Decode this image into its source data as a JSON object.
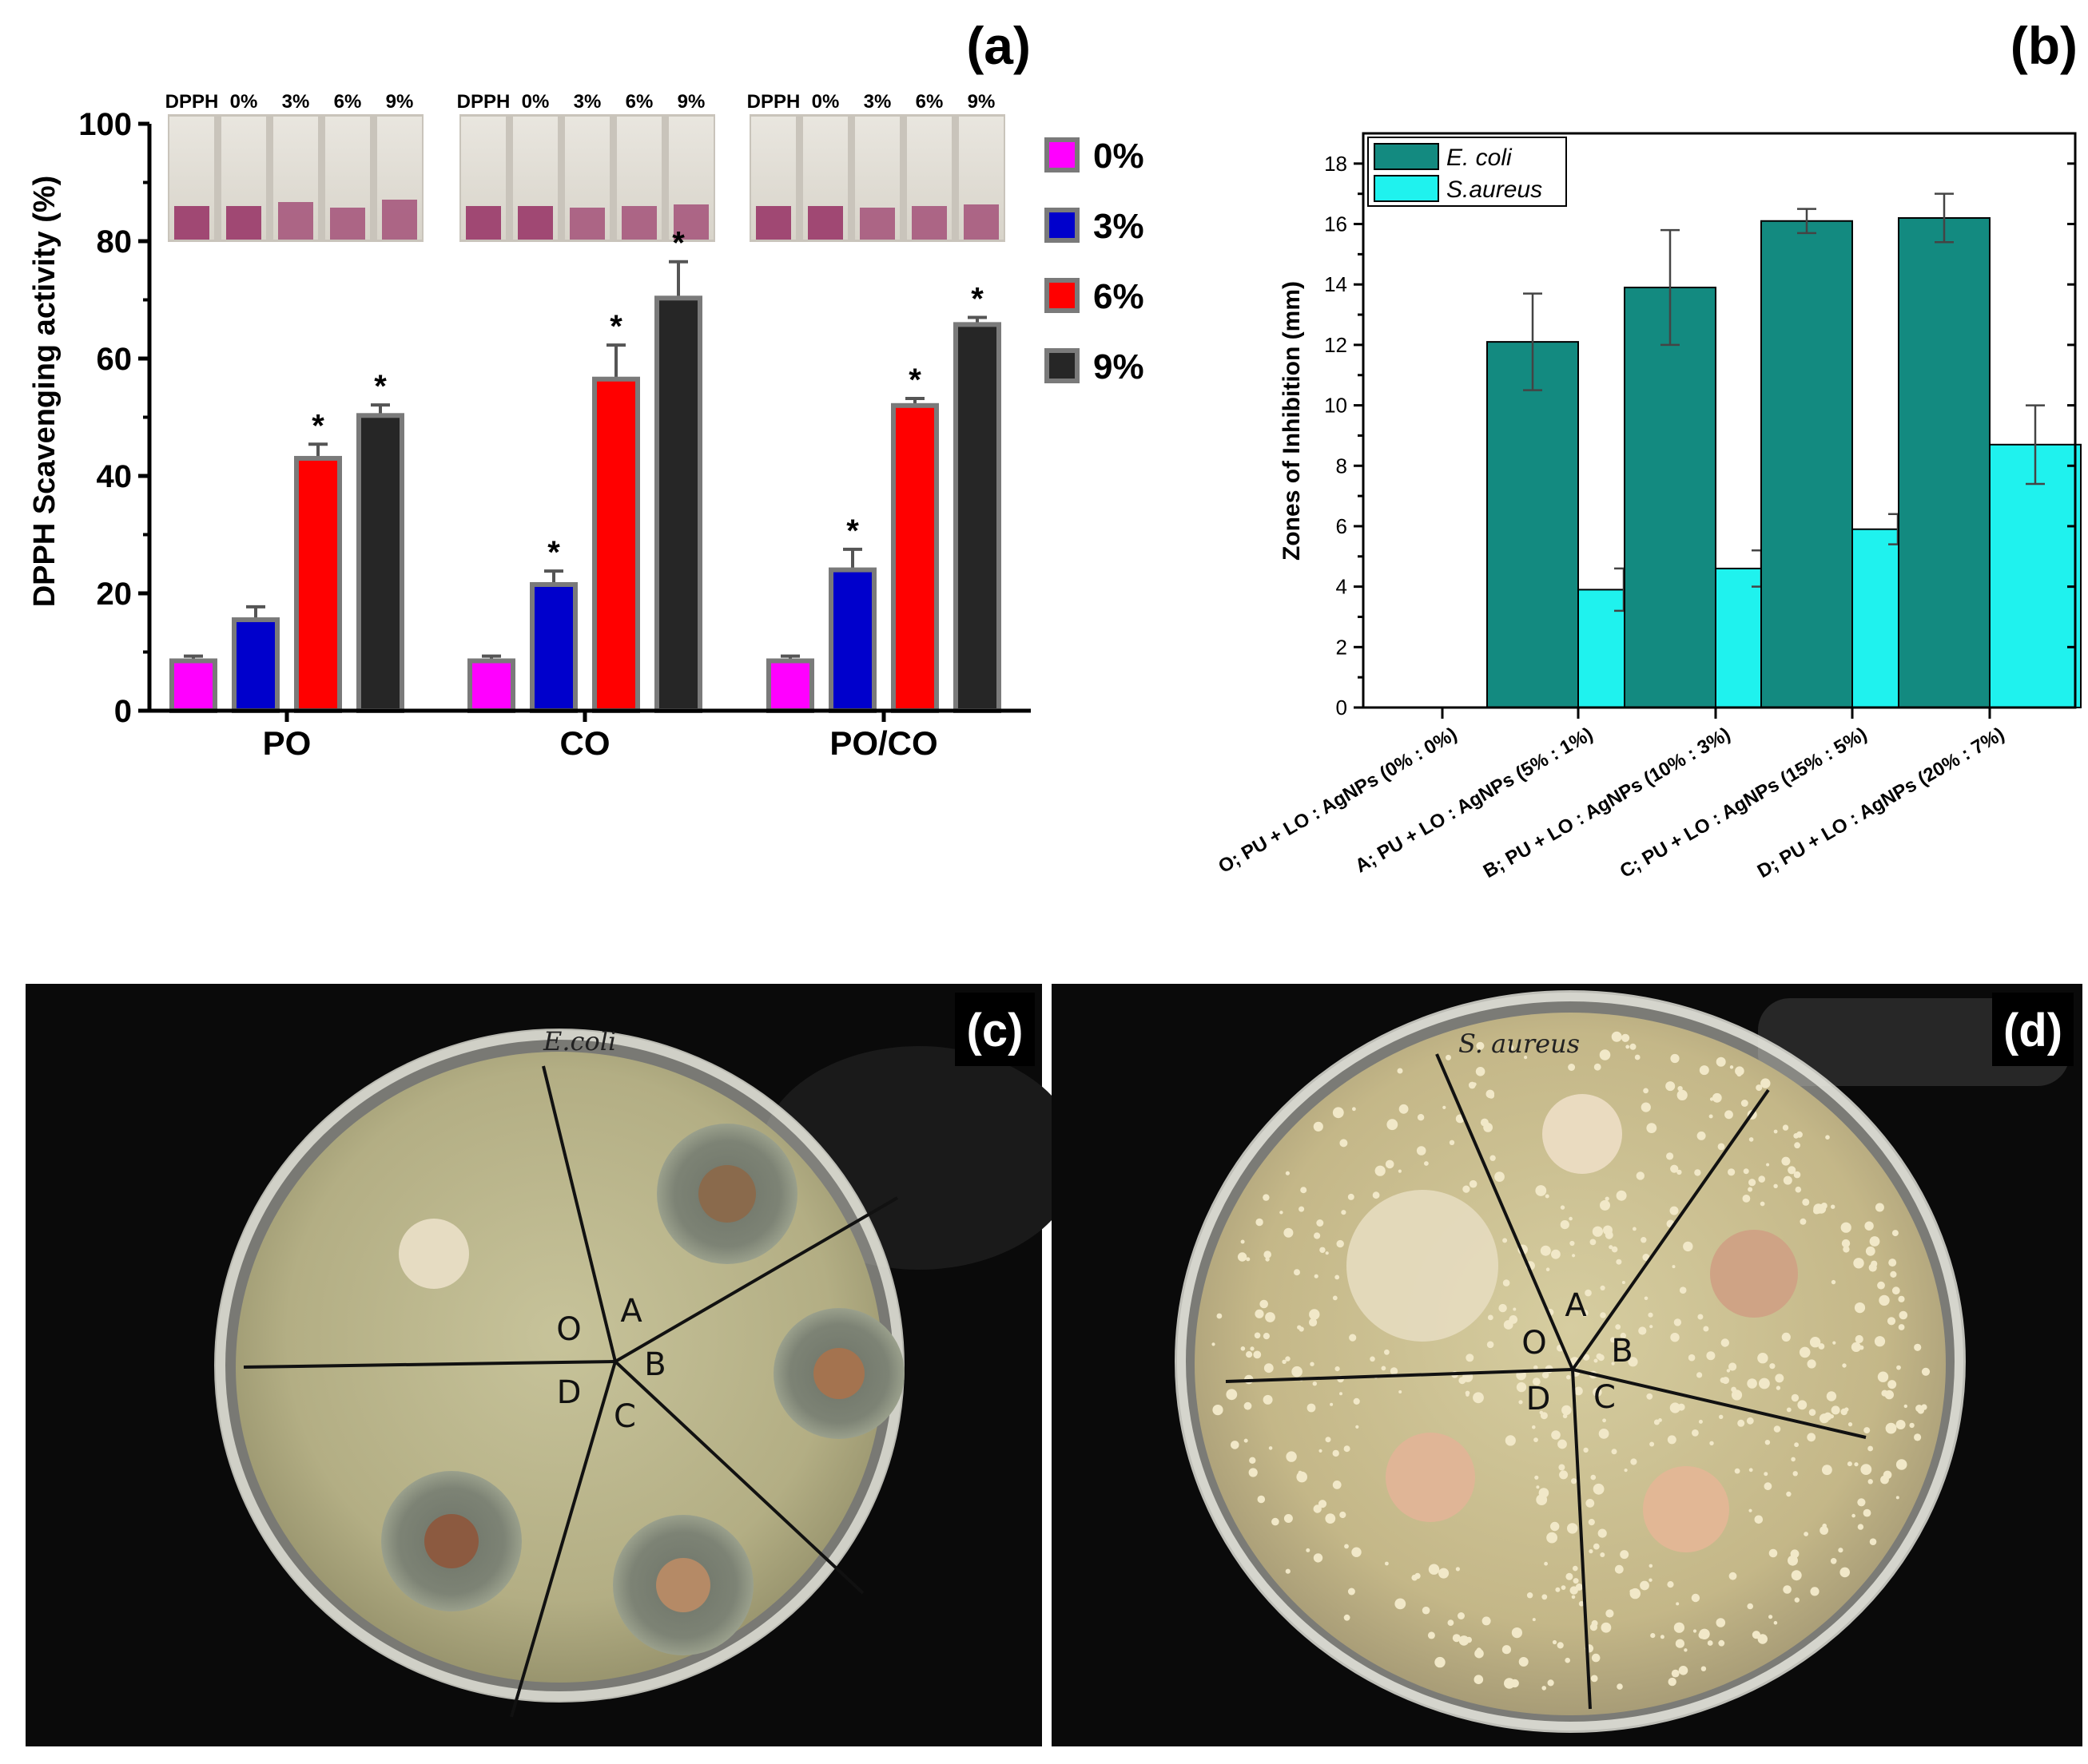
{
  "panel_labels": {
    "a": "(a)",
    "b": "(b)",
    "c": "(c)",
    "d": "(d)"
  },
  "colors": {
    "s0": "#ff00ff",
    "s3": "#0000cc",
    "s6": "#ff0000",
    "s9": "#262626",
    "bar_border": "#7a7a7a",
    "ecoli": "#138a80",
    "saureus": "#1ff2ee",
    "plate_bg": "#0b0b0b",
    "agar_c": "#b9b48a",
    "agar_d": "#c8bc8c",
    "vial_liquid": "#a04873"
  },
  "chart_data": [
    {
      "type": "bar",
      "panel": "a",
      "ylabel": "DPPH Scavenging activity (%)",
      "ylim": [
        0,
        100
      ],
      "yticks": [
        0,
        20,
        40,
        60,
        80,
        100
      ],
      "categories": [
        "PO",
        "CO",
        "PO/CO"
      ],
      "vial_labels": [
        "DPPH",
        "0%",
        "3%",
        "6%",
        "9%"
      ],
      "legend_position": "right",
      "series": [
        {
          "name": "0%",
          "color_key": "s0",
          "values": [
            8.5,
            8.5,
            8.5
          ],
          "errors": [
            0.8,
            0.8,
            0.8
          ],
          "significant": [
            false,
            false,
            false
          ]
        },
        {
          "name": "3%",
          "color_key": "s3",
          "values": [
            15.5,
            21.5,
            24
          ],
          "errors": [
            2.2,
            2.3,
            3.5
          ],
          "significant": [
            false,
            true,
            true
          ]
        },
        {
          "name": "6%",
          "color_key": "s6",
          "values": [
            43,
            56.5,
            52
          ],
          "errors": [
            2.4,
            5.8,
            1.2
          ],
          "significant": [
            true,
            true,
            true
          ]
        },
        {
          "name": "9%",
          "color_key": "s9",
          "values": [
            50.3,
            70.3,
            65.8
          ],
          "errors": [
            1.8,
            6.2,
            1.2
          ],
          "significant": [
            true,
            true,
            true
          ]
        }
      ],
      "significance_marker": "*"
    },
    {
      "type": "bar",
      "panel": "b",
      "ylabel": "Zones of Inhibition (mm)",
      "ylim": [
        0,
        19
      ],
      "yticks": [
        0,
        2,
        4,
        6,
        8,
        10,
        12,
        14,
        16,
        18
      ],
      "categories": [
        "O; PU + LO : AgNPs (0% : 0%)",
        "A; PU + LO : AgNPs (5% : 1%)",
        "B; PU + LO : AgNPs (10% : 3%)",
        "C; PU + LO : AgNPs (15% : 5%)",
        "D; PU + LO : AgNPs (20% : 7%)"
      ],
      "legend_position": "top-left",
      "series": [
        {
          "name": "E. coli",
          "color_key": "ecoli",
          "values": [
            0,
            12.1,
            13.9,
            16.1,
            16.2
          ],
          "errors": [
            0,
            1.6,
            1.9,
            0.4,
            0.8
          ]
        },
        {
          "name": "S.aureus",
          "color_key": "saureus",
          "values": [
            0,
            3.9,
            4.6,
            5.9,
            8.7
          ],
          "errors": [
            0,
            0.7,
            0.6,
            0.5,
            1.3
          ]
        }
      ]
    }
  ],
  "plate_c": {
    "handwritten_label": "E.coli",
    "sector_labels": [
      "O",
      "A",
      "B",
      "C",
      "D"
    ]
  },
  "plate_d": {
    "handwritten_label": "S. aureus",
    "sector_labels": [
      "O",
      "A",
      "B",
      "C",
      "D"
    ]
  }
}
